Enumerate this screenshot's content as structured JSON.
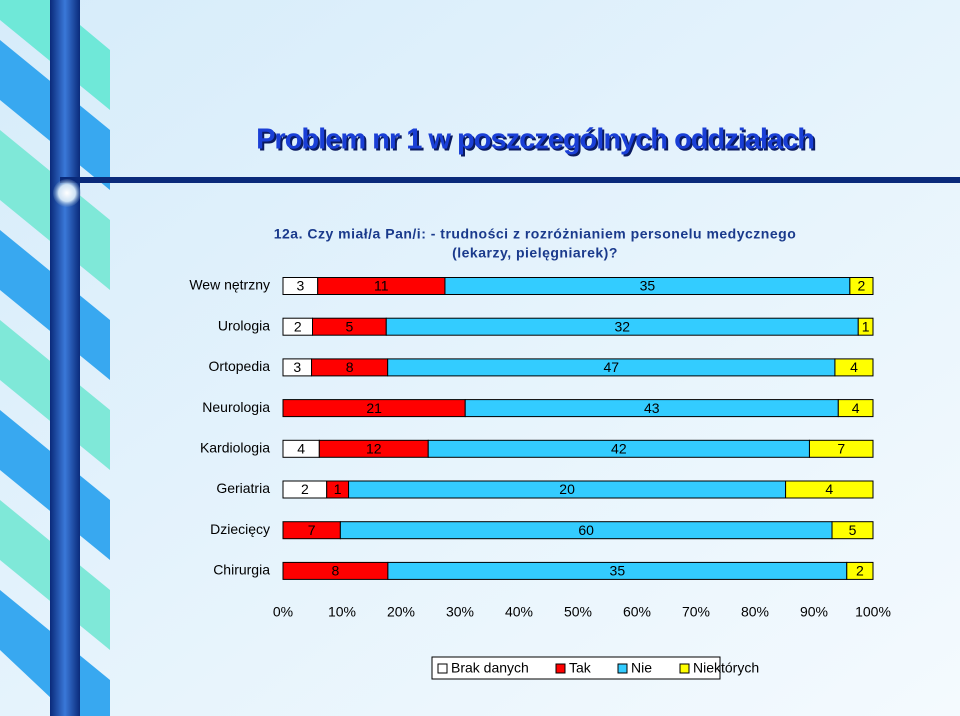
{
  "chart_data": {
    "type": "stacked-bar-100",
    "title": "Problem nr 1 w poszczególnych oddziałach",
    "subtitle": [
      "12a. Czy miał/a Pan/i: - trudności z rozróżnianiem personelu medycznego",
      "(lekarzy, pielęgniarek)?"
    ],
    "categories": [
      "Wew nętrzny",
      "Urologia",
      "Ortopedia",
      "Neurologia",
      "Kardiologia",
      "Geriatria",
      "Dziecięcy",
      "Chirurgia"
    ],
    "series": [
      {
        "name": "Brak danych",
        "color": "#ffffff",
        "values": [
          3,
          2,
          3,
          null,
          4,
          2,
          null,
          null
        ]
      },
      {
        "name": "Tak",
        "color": "#ff0000",
        "values": [
          11,
          5,
          8,
          21,
          12,
          1,
          7,
          8
        ]
      },
      {
        "name": "Nie",
        "color": "#33ccff",
        "values": [
          35,
          32,
          47,
          43,
          42,
          20,
          60,
          35
        ]
      },
      {
        "name": "Niektórych",
        "color": "#ffff00",
        "values": [
          2,
          1,
          4,
          4,
          7,
          4,
          5,
          2
        ]
      }
    ],
    "xlim": [
      0,
      100
    ],
    "xticks": [
      {
        "value": 0,
        "label": "0%"
      },
      {
        "value": 10,
        "label": "10%"
      },
      {
        "value": 20,
        "label": "20%"
      },
      {
        "value": 30,
        "label": "30%"
      },
      {
        "value": 40,
        "label": "40%"
      },
      {
        "value": 50,
        "label": "50%"
      },
      {
        "value": 60,
        "label": "60%"
      },
      {
        "value": 70,
        "label": "70%"
      },
      {
        "value": 80,
        "label": "80%"
      },
      {
        "value": 90,
        "label": "90%"
      },
      {
        "value": 100,
        "label": "100%"
      }
    ],
    "legend": "bottom"
  }
}
